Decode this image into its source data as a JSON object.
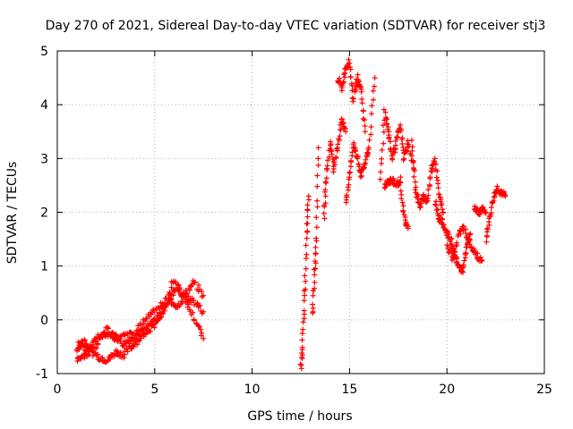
{
  "chart_data": {
    "type": "scatter",
    "title": "Day 270 of 2021, Sidereal Day-to-day VTEC variation (SDTVAR) for receiver stj3",
    "xlabel": "GPS time / hours",
    "ylabel": "SDTVAR / TECUs",
    "xlim": [
      0,
      25
    ],
    "ylim": [
      -1,
      5
    ],
    "xticks": [
      0,
      5,
      10,
      15,
      20,
      25
    ],
    "yticks": [
      -1,
      0,
      1,
      2,
      3,
      4,
      5
    ],
    "grid": true,
    "marker": "+",
    "series": [
      {
        "name": "SDTVAR stj3",
        "color": "#ff0000",
        "segments": [
          {
            "x": [
              1.0,
              1.3,
              1.6,
              2.0,
              2.3,
              2.6,
              3.0,
              3.4,
              3.8,
              4.2,
              4.6,
              5.0,
              5.4,
              5.8,
              6.2,
              6.6,
              7.0,
              7.5
            ],
            "y": [
              -0.55,
              -0.4,
              -0.5,
              -0.35,
              -0.3,
              -0.25,
              -0.3,
              -0.45,
              -0.35,
              -0.25,
              -0.15,
              0.0,
              0.1,
              0.45,
              0.6,
              0.4,
              0.35,
              0.15
            ]
          },
          {
            "x": [
              1.0,
              1.4,
              1.8,
              2.2,
              2.6,
              3.0,
              3.4,
              3.8,
              4.2,
              4.6,
              5.0,
              5.4,
              5.8,
              6.2,
              6.6,
              7.0,
              7.5
            ],
            "y": [
              -0.75,
              -0.65,
              -0.6,
              -0.7,
              -0.75,
              -0.6,
              -0.65,
              -0.5,
              -0.35,
              -0.2,
              -0.1,
              0.2,
              0.35,
              0.25,
              0.5,
              0.7,
              0.45
            ]
          },
          {
            "x": [
              1.1,
              1.5,
              2.0,
              2.5,
              3.0,
              3.5,
              4.0,
              4.5,
              5.0,
              5.5,
              6.0,
              6.5,
              7.0,
              7.5
            ],
            "y": [
              -0.45,
              -0.55,
              -0.5,
              -0.15,
              -0.35,
              -0.3,
              -0.25,
              0.0,
              0.2,
              0.3,
              0.75,
              0.4,
              0.05,
              -0.35
            ]
          },
          {
            "x": [
              12.5,
              12.6,
              12.7,
              12.8,
              12.9
            ],
            "y": [
              -0.9,
              -0.4,
              0.5,
              1.6,
              2.3
            ]
          },
          {
            "x": [
              13.1,
              13.2,
              13.3,
              13.4
            ],
            "y": [
              0.1,
              0.8,
              1.5,
              3.2
            ]
          },
          {
            "x": [
              13.7,
              13.8,
              14.0,
              14.2,
              14.4,
              14.6,
              14.8
            ],
            "y": [
              1.9,
              2.6,
              3.3,
              2.8,
              3.2,
              3.7,
              3.5
            ]
          },
          {
            "x": [
              14.4,
              14.6,
              14.8,
              15.0,
              15.2,
              15.4,
              15.6,
              15.8
            ],
            "y": [
              4.5,
              4.3,
              4.7,
              4.8,
              4.1,
              4.5,
              4.3,
              3.5
            ]
          },
          {
            "x": [
              14.8,
              15.0,
              15.2,
              15.4,
              15.6,
              15.8,
              16.0,
              16.3
            ],
            "y": [
              2.2,
              2.6,
              3.3,
              3.0,
              2.7,
              2.9,
              3.2,
              4.5
            ]
          },
          {
            "x": [
              16.6,
              16.8,
              17.0,
              17.2,
              17.4,
              17.6,
              17.8,
              18.0,
              18.3
            ],
            "y": [
              2.6,
              3.9,
              3.5,
              3.0,
              3.3,
              3.6,
              3.0,
              3.3,
              2.8
            ]
          },
          {
            "x": [
              16.8,
              17.0,
              17.2,
              17.4,
              17.6,
              17.8,
              18.0
            ],
            "y": [
              2.5,
              2.55,
              2.6,
              2.5,
              2.6,
              1.9,
              1.7
            ]
          },
          {
            "x": [
              18.2,
              18.4,
              18.6,
              18.8,
              19.0,
              19.2,
              19.4,
              19.6,
              19.8
            ],
            "y": [
              3.3,
              2.4,
              2.1,
              2.3,
              2.2,
              2.8,
              3.0,
              2.3,
              2.0
            ]
          },
          {
            "x": [
              19.4,
              19.6,
              19.8,
              20.0,
              20.2,
              20.4,
              20.6,
              20.8,
              21.0,
              21.2
            ],
            "y": [
              2.2,
              1.9,
              1.8,
              1.6,
              1.5,
              1.2,
              1.0,
              0.9,
              1.3,
              1.6
            ]
          },
          {
            "x": [
              20.0,
              20.3,
              20.6,
              20.9,
              21.2,
              21.5,
              21.8
            ],
            "y": [
              1.4,
              1.1,
              1.6,
              1.7,
              1.4,
              1.2,
              1.1
            ]
          },
          {
            "x": [
              21.4,
              21.6,
              21.8,
              22.0
            ],
            "y": [
              2.1,
              2.0,
              2.05,
              2.0
            ]
          },
          {
            "x": [
              22.0,
              22.2,
              22.4,
              22.6,
              22.8,
              23.0
            ],
            "y": [
              1.5,
              1.9,
              2.3,
              2.45,
              2.35,
              2.3
            ]
          }
        ]
      }
    ]
  }
}
